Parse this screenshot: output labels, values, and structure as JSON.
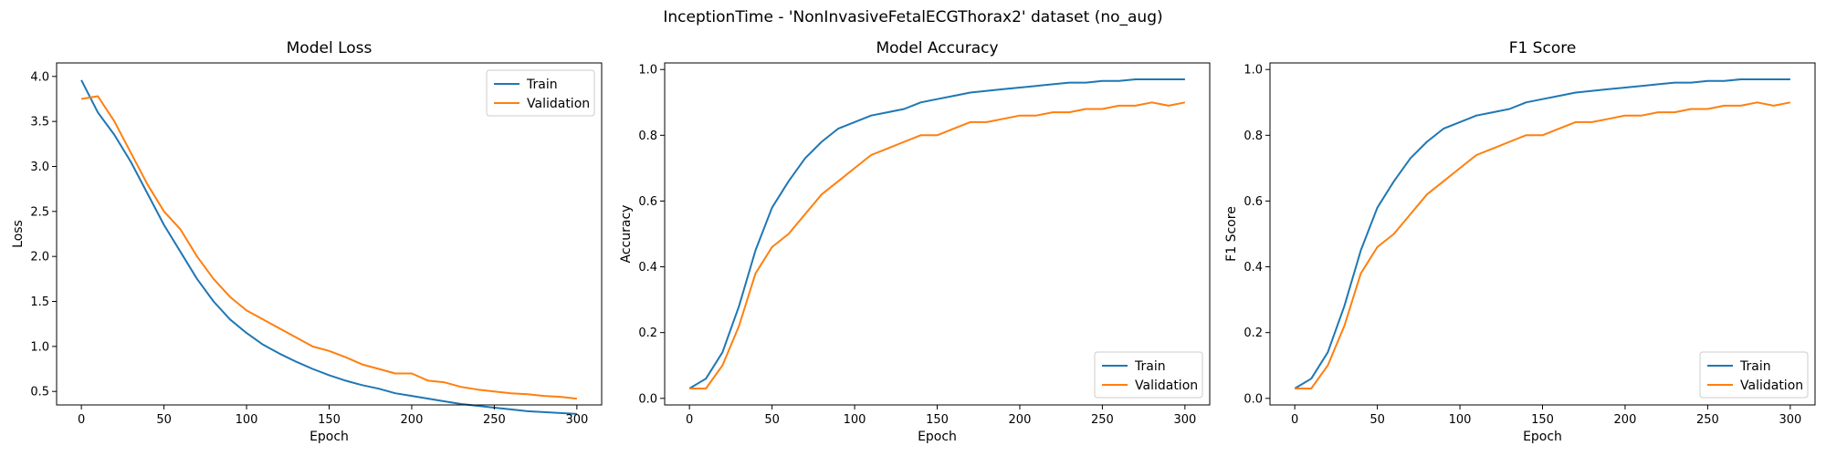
{
  "figure": {
    "title": "InceptionTime - 'NonInvasiveFetalECGThorax2' dataset (no_aug)"
  },
  "colors": {
    "train": "#1f77b4",
    "validation": "#ff7f0e",
    "axes": "#000000",
    "background": "#ffffff"
  },
  "chart_data": [
    {
      "type": "line",
      "title": "Model Loss",
      "xlabel": "Epoch",
      "ylabel": "Loss",
      "xlim": [
        -15,
        315
      ],
      "ylim": [
        0.35,
        4.15
      ],
      "xticks": [
        0,
        50,
        100,
        150,
        200,
        250,
        300
      ],
      "yticks": [
        0.5,
        1.0,
        1.5,
        2.0,
        2.5,
        3.0,
        3.5,
        4.0
      ],
      "ytick_labels": [
        "0.5",
        "1.0",
        "1.5",
        "2.0",
        "2.5",
        "3.0",
        "3.5",
        "4.0"
      ],
      "grid": false,
      "legend": "top-right",
      "x": [
        0,
        10,
        20,
        30,
        40,
        50,
        60,
        70,
        80,
        90,
        100,
        110,
        120,
        130,
        140,
        150,
        160,
        170,
        180,
        190,
        200,
        210,
        220,
        230,
        240,
        250,
        260,
        270,
        280,
        290,
        300
      ],
      "series": [
        {
          "name": "Train",
          "color_key": "train",
          "values": [
            3.96,
            3.6,
            3.35,
            3.05,
            2.7,
            2.35,
            2.05,
            1.75,
            1.5,
            1.3,
            1.15,
            1.02,
            0.92,
            0.83,
            0.75,
            0.68,
            0.62,
            0.57,
            0.53,
            0.48,
            0.45,
            0.42,
            0.39,
            0.36,
            0.34,
            0.32,
            0.3,
            0.28,
            0.27,
            0.26,
            0.25
          ]
        },
        {
          "name": "Validation",
          "color_key": "validation",
          "values": [
            3.75,
            3.78,
            3.5,
            3.15,
            2.8,
            2.5,
            2.3,
            2.0,
            1.75,
            1.55,
            1.4,
            1.3,
            1.2,
            1.1,
            1.0,
            0.95,
            0.88,
            0.8,
            0.75,
            0.7,
            0.7,
            0.62,
            0.6,
            0.55,
            0.52,
            0.5,
            0.48,
            0.47,
            0.45,
            0.44,
            0.42
          ]
        }
      ]
    },
    {
      "type": "line",
      "title": "Model Accuracy",
      "xlabel": "Epoch",
      "ylabel": "Accuracy",
      "xlim": [
        -15,
        315
      ],
      "ylim": [
        -0.02,
        1.02
      ],
      "xticks": [
        0,
        50,
        100,
        150,
        200,
        250,
        300
      ],
      "yticks": [
        0.0,
        0.2,
        0.4,
        0.6,
        0.8,
        1.0
      ],
      "ytick_labels": [
        "0.0",
        "0.2",
        "0.4",
        "0.6",
        "0.8",
        "1.0"
      ],
      "grid": false,
      "legend": "bottom-right",
      "x": [
        0,
        10,
        20,
        30,
        40,
        50,
        60,
        70,
        80,
        90,
        100,
        110,
        120,
        130,
        140,
        150,
        160,
        170,
        180,
        190,
        200,
        210,
        220,
        230,
        240,
        250,
        260,
        270,
        280,
        290,
        300
      ],
      "series": [
        {
          "name": "Train",
          "color_key": "train",
          "values": [
            0.03,
            0.06,
            0.14,
            0.28,
            0.45,
            0.58,
            0.66,
            0.73,
            0.78,
            0.82,
            0.84,
            0.86,
            0.87,
            0.88,
            0.9,
            0.91,
            0.92,
            0.93,
            0.935,
            0.94,
            0.945,
            0.95,
            0.955,
            0.96,
            0.96,
            0.965,
            0.965,
            0.97,
            0.97,
            0.97,
            0.97
          ]
        },
        {
          "name": "Validation",
          "color_key": "validation",
          "values": [
            0.03,
            0.03,
            0.1,
            0.22,
            0.38,
            0.46,
            0.5,
            0.56,
            0.62,
            0.66,
            0.7,
            0.74,
            0.76,
            0.78,
            0.8,
            0.8,
            0.82,
            0.84,
            0.84,
            0.85,
            0.86,
            0.86,
            0.87,
            0.87,
            0.88,
            0.88,
            0.89,
            0.89,
            0.9,
            0.89,
            0.9
          ]
        }
      ]
    },
    {
      "type": "line",
      "title": "F1 Score",
      "xlabel": "Epoch",
      "ylabel": "F1 Score",
      "xlim": [
        -15,
        315
      ],
      "ylim": [
        -0.02,
        1.02
      ],
      "xticks": [
        0,
        50,
        100,
        150,
        200,
        250,
        300
      ],
      "yticks": [
        0.0,
        0.2,
        0.4,
        0.6,
        0.8,
        1.0
      ],
      "ytick_labels": [
        "0.0",
        "0.2",
        "0.4",
        "0.6",
        "0.8",
        "1.0"
      ],
      "grid": false,
      "legend": "bottom-right",
      "x": [
        0,
        10,
        20,
        30,
        40,
        50,
        60,
        70,
        80,
        90,
        100,
        110,
        120,
        130,
        140,
        150,
        160,
        170,
        180,
        190,
        200,
        210,
        220,
        230,
        240,
        250,
        260,
        270,
        280,
        290,
        300
      ],
      "series": [
        {
          "name": "Train",
          "color_key": "train",
          "values": [
            0.03,
            0.06,
            0.14,
            0.28,
            0.45,
            0.58,
            0.66,
            0.73,
            0.78,
            0.82,
            0.84,
            0.86,
            0.87,
            0.88,
            0.9,
            0.91,
            0.92,
            0.93,
            0.935,
            0.94,
            0.945,
            0.95,
            0.955,
            0.96,
            0.96,
            0.965,
            0.965,
            0.97,
            0.97,
            0.97,
            0.97
          ]
        },
        {
          "name": "Validation",
          "color_key": "validation",
          "values": [
            0.03,
            0.03,
            0.1,
            0.22,
            0.38,
            0.46,
            0.5,
            0.56,
            0.62,
            0.66,
            0.7,
            0.74,
            0.76,
            0.78,
            0.8,
            0.8,
            0.82,
            0.84,
            0.84,
            0.85,
            0.86,
            0.86,
            0.87,
            0.87,
            0.88,
            0.88,
            0.89,
            0.89,
            0.9,
            0.89,
            0.9
          ]
        }
      ]
    }
  ]
}
